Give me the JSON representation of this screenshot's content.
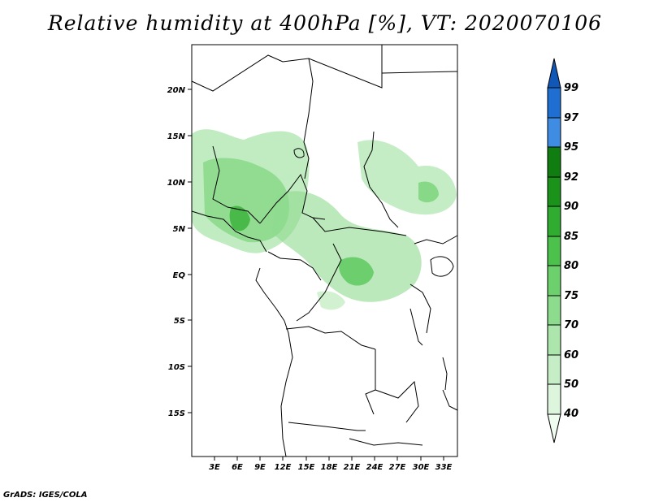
{
  "title": "Relative humidity at 400hPa [%], VT: 2020070106",
  "footer": "GrADS: IGES/COLA",
  "map": {
    "lat_labels": [
      "20N",
      "15N",
      "10N",
      "5N",
      "EQ",
      "5S",
      "10S",
      "15S"
    ],
    "lon_labels": [
      "3E",
      "6E",
      "9E",
      "12E",
      "15E",
      "18E",
      "21E",
      "24E",
      "27E",
      "30E",
      "33E"
    ]
  },
  "colorbar": {
    "levels": [
      "40",
      "50",
      "60",
      "70",
      "75",
      "80",
      "85",
      "90",
      "92",
      "95",
      "97",
      "99"
    ],
    "colors": [
      "#f0fcf0",
      "#dcf5dc",
      "#c6eec6",
      "#ace6ac",
      "#8ddb8d",
      "#6cd06c",
      "#4cc24c",
      "#30ad30",
      "#1b931b",
      "#0f7d0f",
      "#3f8de3",
      "#1f6fd2",
      "#1157b8"
    ]
  }
}
